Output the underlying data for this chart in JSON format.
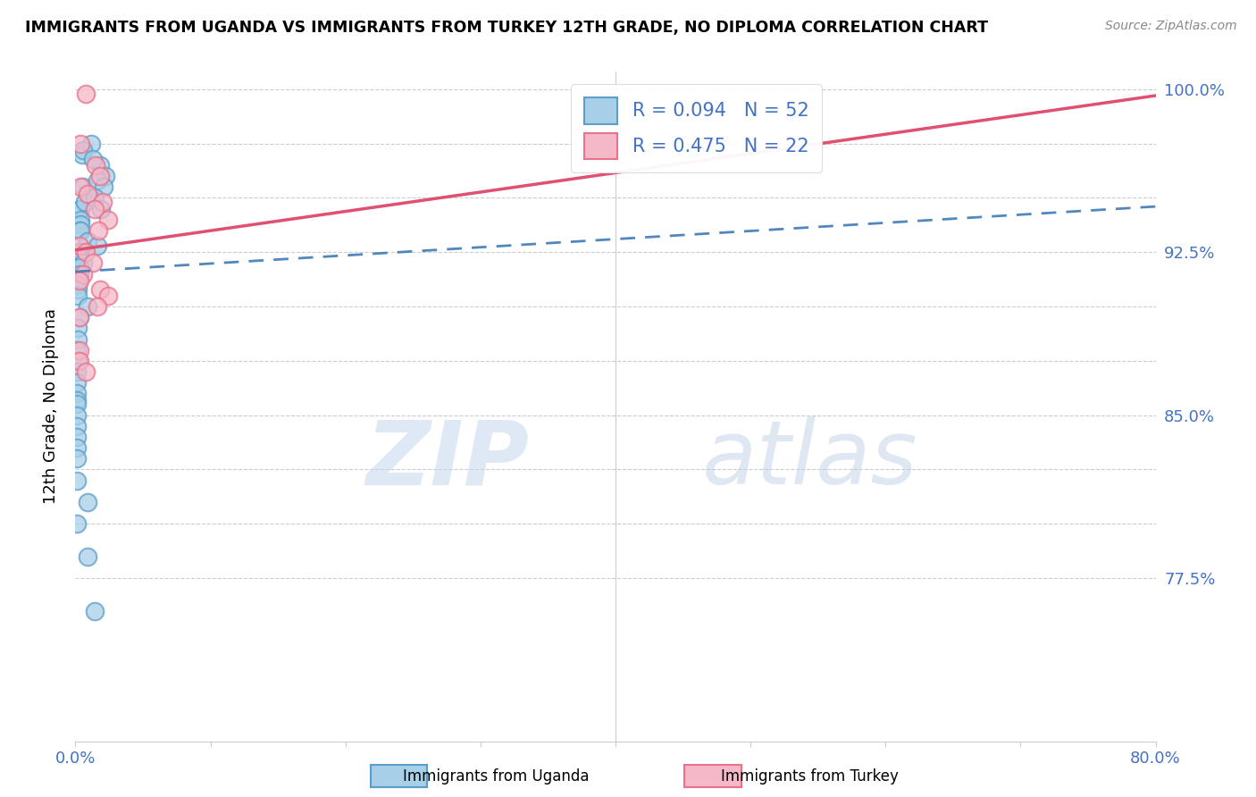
{
  "title": "IMMIGRANTS FROM UGANDA VS IMMIGRANTS FROM TURKEY 12TH GRADE, NO DIPLOMA CORRELATION CHART",
  "source": "Source: ZipAtlas.com",
  "ylabel": "12th Grade, No Diploma",
  "x_min": 0.0,
  "x_max": 0.8,
  "y_min": 0.7,
  "y_max": 1.008,
  "y_ticks": [
    0.775,
    0.8,
    0.825,
    0.85,
    0.875,
    0.9,
    0.925,
    0.95,
    0.975,
    1.0
  ],
  "y_tick_labels_right": [
    "77.5%",
    "",
    "",
    "85.0%",
    "",
    "",
    "92.5%",
    "",
    "",
    "100.0%"
  ],
  "uganda_x": [
    0.005,
    0.012,
    0.018,
    0.006,
    0.013,
    0.022,
    0.006,
    0.016,
    0.021,
    0.004,
    0.011,
    0.004,
    0.007,
    0.014,
    0.019,
    0.004,
    0.004,
    0.003,
    0.004,
    0.009,
    0.016,
    0.003,
    0.003,
    0.003,
    0.006,
    0.003,
    0.003,
    0.002,
    0.002,
    0.002,
    0.002,
    0.009,
    0.003,
    0.002,
    0.002,
    0.001,
    0.002,
    0.001,
    0.001,
    0.001,
    0.001,
    0.001,
    0.001,
    0.001,
    0.001,
    0.001,
    0.001,
    0.001,
    0.009,
    0.001,
    0.009,
    0.014
  ],
  "uganda_y": [
    0.97,
    0.975,
    0.965,
    0.972,
    0.968,
    0.96,
    0.955,
    0.958,
    0.955,
    0.945,
    0.95,
    0.945,
    0.948,
    0.95,
    0.945,
    0.94,
    0.938,
    0.935,
    0.935,
    0.93,
    0.928,
    0.925,
    0.925,
    0.922,
    0.92,
    0.918,
    0.915,
    0.912,
    0.91,
    0.908,
    0.905,
    0.9,
    0.895,
    0.89,
    0.885,
    0.88,
    0.875,
    0.87,
    0.865,
    0.86,
    0.857,
    0.855,
    0.85,
    0.845,
    0.84,
    0.835,
    0.83,
    0.82,
    0.81,
    0.8,
    0.785,
    0.76
  ],
  "turkey_x": [
    0.008,
    0.004,
    0.015,
    0.018,
    0.004,
    0.009,
    0.02,
    0.014,
    0.024,
    0.017,
    0.003,
    0.008,
    0.013,
    0.006,
    0.003,
    0.018,
    0.024,
    0.016,
    0.003,
    0.003,
    0.003,
    0.008
  ],
  "turkey_y": [
    0.998,
    0.975,
    0.965,
    0.96,
    0.955,
    0.952,
    0.948,
    0.945,
    0.94,
    0.935,
    0.928,
    0.925,
    0.92,
    0.915,
    0.912,
    0.908,
    0.905,
    0.9,
    0.895,
    0.88,
    0.875,
    0.87
  ],
  "uganda_R": 0.094,
  "uganda_N": 52,
  "turkey_R": 0.475,
  "turkey_N": 22,
  "uganda_color": "#a8cfe8",
  "turkey_color": "#f5b8c8",
  "uganda_edge_color": "#5a9ec9",
  "turkey_edge_color": "#e8728a",
  "uganda_line_color": "#3d7ab5",
  "turkey_line_color": "#e05070",
  "watermark_zip": "ZIP",
  "watermark_atlas": "atlas",
  "bg_color": "#ffffff"
}
